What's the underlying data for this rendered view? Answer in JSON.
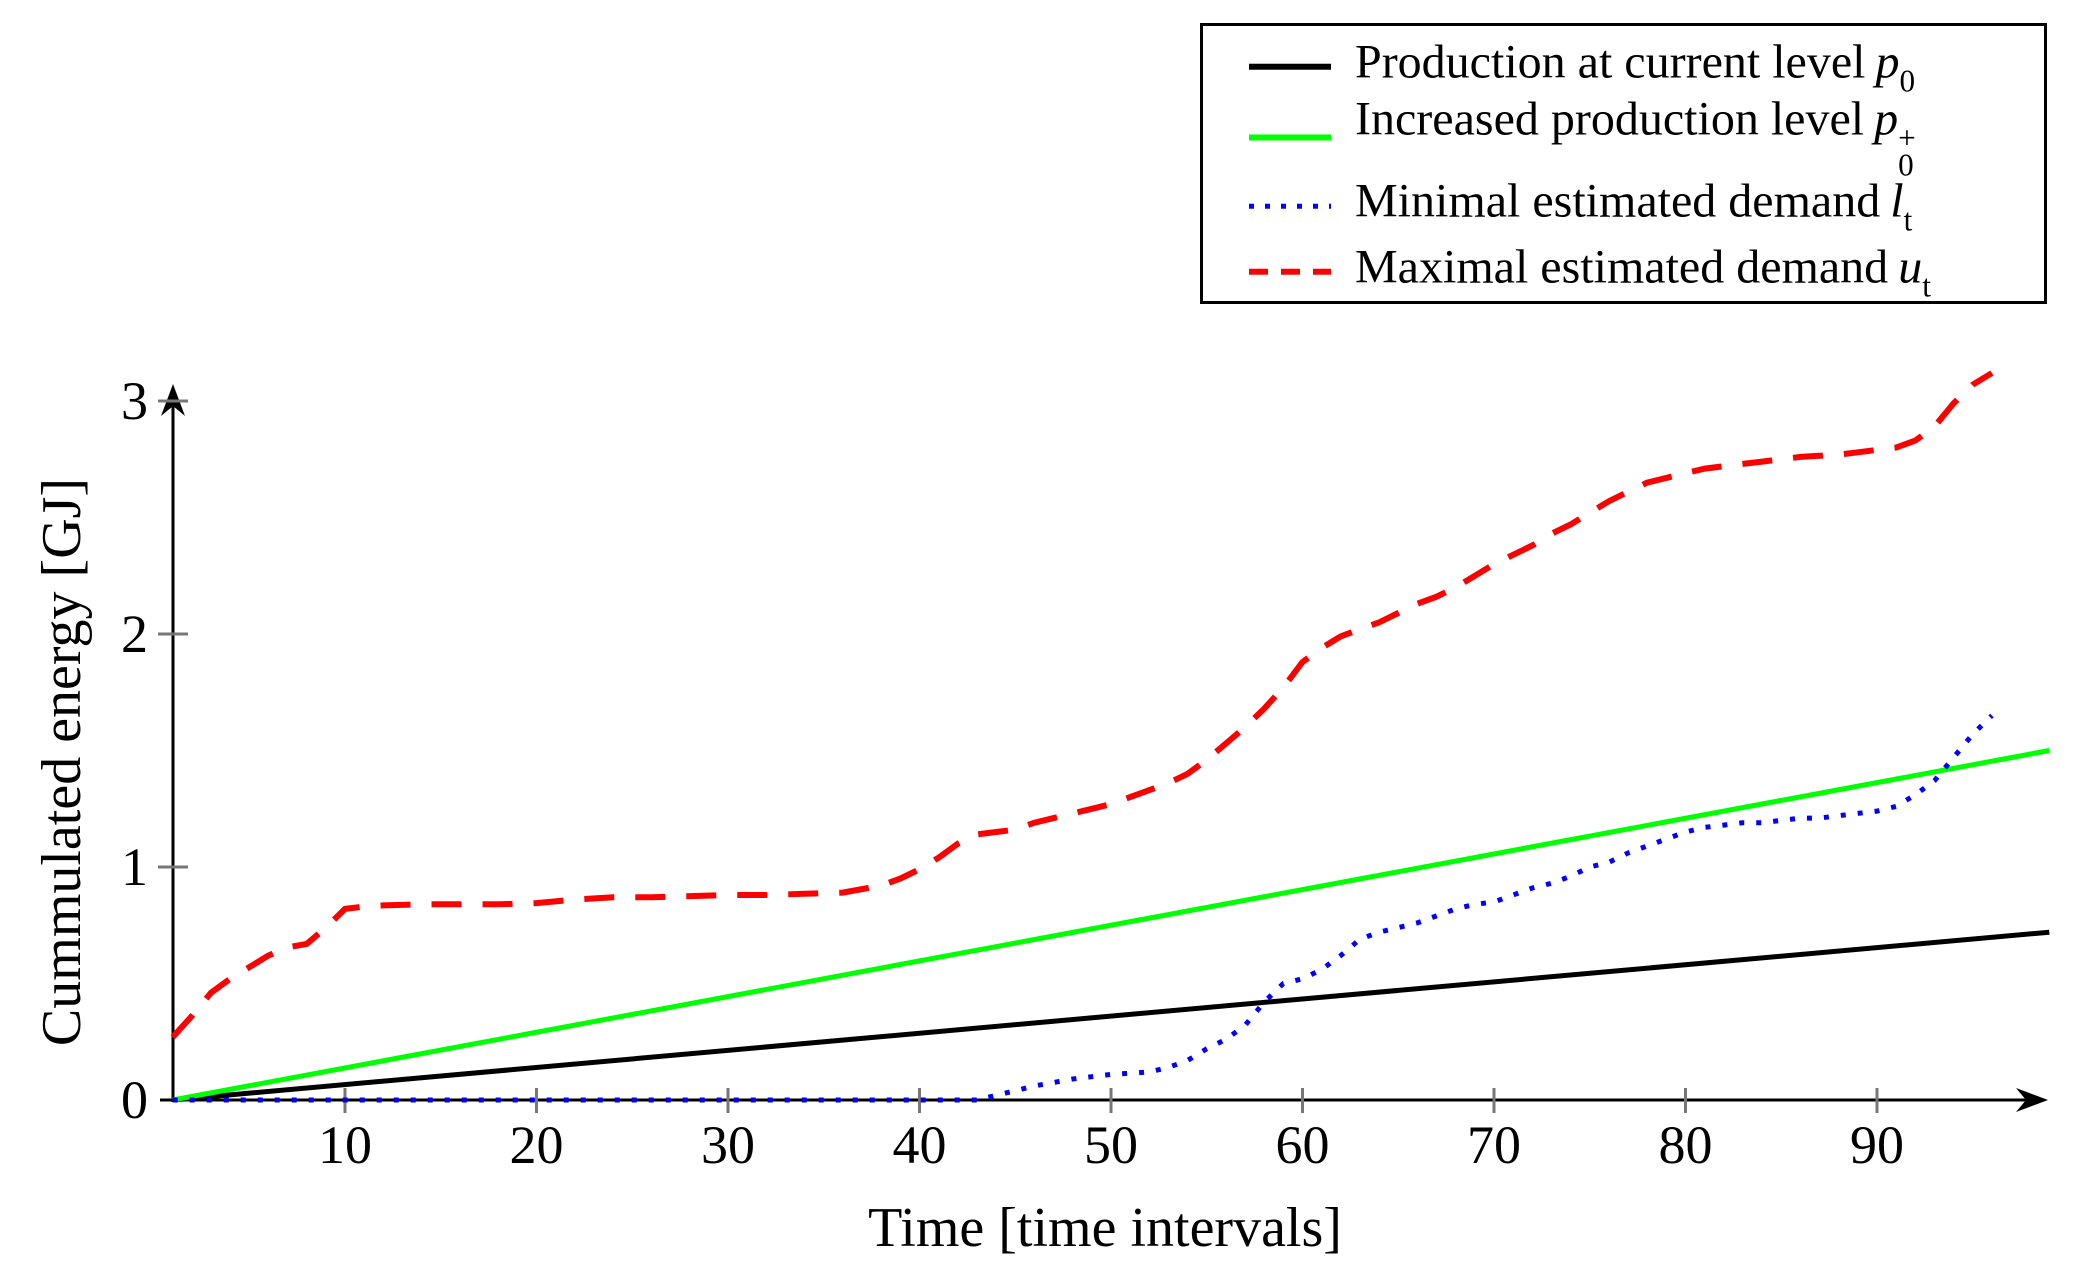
{
  "figure": {
    "background": "#ffffff"
  },
  "legend": {
    "rows": [
      {
        "label_text": "Production at current level",
        "symbol": "p",
        "subscript": "0",
        "superscript": "",
        "color": "#000000",
        "line_style": "solid"
      },
      {
        "label_text": "Increased production level",
        "symbol": "p",
        "subscript": "0",
        "superscript": "+",
        "color": "#00ff00",
        "line_style": "solid"
      },
      {
        "label_text": "Minimal estimated demand",
        "symbol": "l",
        "subscript": "t",
        "superscript": "",
        "color": "#0000ff",
        "line_style": "dotted"
      },
      {
        "label_text": "Maximal estimated demand",
        "symbol": "u",
        "subscript": "t",
        "superscript": "",
        "color": "#ff0000",
        "line_style": "dashed"
      }
    ]
  },
  "axes": {
    "x": {
      "title": "Time [time intervals]",
      "ticks": [
        10,
        20,
        30,
        40,
        50,
        60,
        70,
        80,
        90
      ],
      "range": [
        1,
        99
      ]
    },
    "y": {
      "title": "Cummulated energy [GJ]",
      "ticks": [
        0,
        1,
        2,
        3
      ],
      "range": [
        0,
        3.2
      ]
    }
  },
  "chart_data": {
    "type": "line",
    "title": "",
    "xlabel": "Time [time intervals]",
    "ylabel": "Cummulated energy [GJ]",
    "xlim": [
      1,
      99
    ],
    "ylim": [
      0,
      3.2
    ],
    "grid": false,
    "legend_position": "top-right",
    "series": [
      {
        "name": "Production at current level p0",
        "color": "#000000",
        "style": "solid",
        "points": [
          [
            1,
            0
          ],
          [
            99,
            0.72
          ]
        ]
      },
      {
        "name": "Increased production level p0+",
        "color": "#00ff00",
        "style": "solid",
        "points": [
          [
            1,
            0
          ],
          [
            99,
            1.5
          ]
        ]
      },
      {
        "name": "Minimal estimated demand l_t",
        "color": "#0000ff",
        "style": "dotted",
        "points": [
          [
            1,
            0
          ],
          [
            5,
            0
          ],
          [
            10,
            0
          ],
          [
            15,
            0
          ],
          [
            20,
            0
          ],
          [
            25,
            0
          ],
          [
            30,
            0
          ],
          [
            35,
            0
          ],
          [
            40,
            0
          ],
          [
            43,
            0
          ],
          [
            44,
            0.02
          ],
          [
            45,
            0.04
          ],
          [
            46,
            0.06
          ],
          [
            47,
            0.075
          ],
          [
            48,
            0.09
          ],
          [
            49,
            0.1
          ],
          [
            50,
            0.11
          ],
          [
            51,
            0.115
          ],
          [
            52,
            0.12
          ],
          [
            53,
            0.14
          ],
          [
            54,
            0.17
          ],
          [
            55,
            0.22
          ],
          [
            56,
            0.26
          ],
          [
            57,
            0.32
          ],
          [
            58,
            0.42
          ],
          [
            59,
            0.5
          ],
          [
            60,
            0.52
          ],
          [
            61,
            0.56
          ],
          [
            62,
            0.62
          ],
          [
            63,
            0.69
          ],
          [
            64,
            0.72
          ],
          [
            65,
            0.74
          ],
          [
            66,
            0.76
          ],
          [
            67,
            0.79
          ],
          [
            68,
            0.82
          ],
          [
            69,
            0.84
          ],
          [
            70,
            0.85
          ],
          [
            71,
            0.88
          ],
          [
            72,
            0.91
          ],
          [
            73,
            0.93
          ],
          [
            74,
            0.96
          ],
          [
            75,
            1.0
          ],
          [
            76,
            1.02
          ],
          [
            77,
            1.06
          ],
          [
            78,
            1.09
          ],
          [
            79,
            1.12
          ],
          [
            80,
            1.15
          ],
          [
            81,
            1.17
          ],
          [
            82,
            1.18
          ],
          [
            83,
            1.19
          ],
          [
            84,
            1.19
          ],
          [
            85,
            1.2
          ],
          [
            86,
            1.21
          ],
          [
            87,
            1.21
          ],
          [
            88,
            1.22
          ],
          [
            89,
            1.23
          ],
          [
            90,
            1.24
          ],
          [
            91,
            1.26
          ],
          [
            92,
            1.31
          ],
          [
            93,
            1.37
          ],
          [
            94,
            1.47
          ],
          [
            95,
            1.57
          ],
          [
            96,
            1.65
          ]
        ]
      },
      {
        "name": "Maximal estimated demand u_t",
        "color": "#ff0000",
        "style": "dashed",
        "points": [
          [
            1,
            0.27
          ],
          [
            2,
            0.36
          ],
          [
            3,
            0.46
          ],
          [
            4,
            0.52
          ],
          [
            5,
            0.57
          ],
          [
            6,
            0.62
          ],
          [
            7,
            0.655
          ],
          [
            8,
            0.67
          ],
          [
            9,
            0.74
          ],
          [
            10,
            0.82
          ],
          [
            11,
            0.83
          ],
          [
            12,
            0.835
          ],
          [
            14,
            0.84
          ],
          [
            16,
            0.84
          ],
          [
            18,
            0.84
          ],
          [
            20,
            0.845
          ],
          [
            22,
            0.86
          ],
          [
            24,
            0.87
          ],
          [
            26,
            0.87
          ],
          [
            28,
            0.875
          ],
          [
            30,
            0.88
          ],
          [
            32,
            0.88
          ],
          [
            34,
            0.885
          ],
          [
            36,
            0.89
          ],
          [
            38,
            0.92
          ],
          [
            39,
            0.95
          ],
          [
            40,
            0.99
          ],
          [
            41,
            1.04
          ],
          [
            42,
            1.1
          ],
          [
            43,
            1.14
          ],
          [
            44,
            1.15
          ],
          [
            45,
            1.16
          ],
          [
            46,
            1.19
          ],
          [
            47,
            1.21
          ],
          [
            48,
            1.23
          ],
          [
            49,
            1.25
          ],
          [
            50,
            1.27
          ],
          [
            51,
            1.3
          ],
          [
            52,
            1.33
          ],
          [
            53,
            1.36
          ],
          [
            54,
            1.4
          ],
          [
            55,
            1.46
          ],
          [
            56,
            1.53
          ],
          [
            57,
            1.6
          ],
          [
            58,
            1.68
          ],
          [
            59,
            1.77
          ],
          [
            60,
            1.88
          ],
          [
            61,
            1.94
          ],
          [
            62,
            1.99
          ],
          [
            63,
            2.02
          ],
          [
            64,
            2.05
          ],
          [
            65,
            2.09
          ],
          [
            66,
            2.13
          ],
          [
            67,
            2.16
          ],
          [
            68,
            2.2
          ],
          [
            69,
            2.25
          ],
          [
            70,
            2.3
          ],
          [
            71,
            2.34
          ],
          [
            72,
            2.38
          ],
          [
            73,
            2.43
          ],
          [
            74,
            2.47
          ],
          [
            75,
            2.52
          ],
          [
            76,
            2.57
          ],
          [
            77,
            2.61
          ],
          [
            78,
            2.65
          ],
          [
            79,
            2.67
          ],
          [
            80,
            2.69
          ],
          [
            81,
            2.71
          ],
          [
            82,
            2.72
          ],
          [
            83,
            2.73
          ],
          [
            84,
            2.74
          ],
          [
            85,
            2.75
          ],
          [
            86,
            2.76
          ],
          [
            87,
            2.765
          ],
          [
            88,
            2.77
          ],
          [
            89,
            2.78
          ],
          [
            90,
            2.79
          ],
          [
            91,
            2.8
          ],
          [
            92,
            2.83
          ],
          [
            93,
            2.89
          ],
          [
            94,
            2.99
          ],
          [
            95,
            3.07
          ],
          [
            96,
            3.12
          ]
        ]
      }
    ]
  }
}
